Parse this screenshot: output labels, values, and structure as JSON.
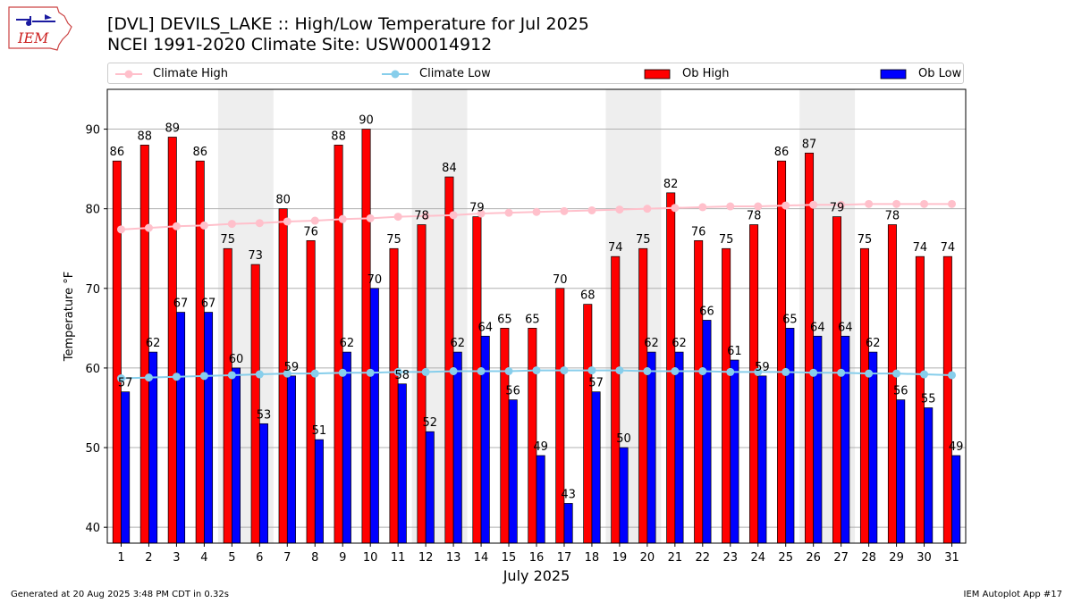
{
  "header": {
    "title_line1": "[DVL] DEVILS_LAKE :: High/Low Temperature for Jul 2025",
    "title_line2": "NCEI 1991-2020 Climate Site: USW00014912",
    "logo_text": "IEM"
  },
  "footer": {
    "generated": "Generated at 20 Aug 2025 3:48 PM CDT in 0.32s",
    "app": "IEM Autoplot App #17"
  },
  "colors": {
    "ob_high": "#ff0000",
    "ob_low": "#0000ff",
    "climate_high": "#ffc0cb",
    "climate_low": "#87ceeb",
    "weekend_shade": "#eeeeee",
    "grid": "#b0b0b0"
  },
  "chart_data": {
    "type": "bar",
    "xlabel": "July 2025",
    "ylabel": "Temperature °F",
    "ylim": [
      38,
      95
    ],
    "yticks": [
      40,
      50,
      60,
      70,
      80,
      90
    ],
    "grid": "horizontal",
    "legend_position": "top",
    "categories": [
      "1",
      "2",
      "3",
      "4",
      "5",
      "6",
      "7",
      "8",
      "9",
      "10",
      "11",
      "12",
      "13",
      "14",
      "15",
      "16",
      "17",
      "18",
      "19",
      "20",
      "21",
      "22",
      "23",
      "24",
      "25",
      "26",
      "27",
      "28",
      "29",
      "30",
      "31"
    ],
    "shaded_days": [
      [
        5,
        6
      ],
      [
        12,
        13
      ],
      [
        19,
        20
      ],
      [
        26,
        27
      ]
    ],
    "series": [
      {
        "name": "Ob High",
        "type": "bar",
        "values": [
          86,
          88,
          89,
          86,
          75,
          73,
          80,
          76,
          88,
          90,
          75,
          78,
          84,
          79,
          65,
          65,
          70,
          68,
          74,
          75,
          82,
          76,
          75,
          78,
          86,
          87,
          79,
          75,
          78,
          74,
          74
        ]
      },
      {
        "name": "Ob Low",
        "type": "bar",
        "values": [
          57,
          62,
          67,
          67,
          60,
          53,
          59,
          51,
          62,
          70,
          58,
          52,
          62,
          64,
          56,
          49,
          43,
          57,
          50,
          62,
          62,
          66,
          61,
          59,
          65,
          64,
          64,
          62,
          56,
          55,
          49
        ]
      },
      {
        "name": "Climate High",
        "type": "line",
        "values": [
          77.4,
          77.6,
          77.8,
          77.9,
          78.1,
          78.2,
          78.4,
          78.5,
          78.7,
          78.8,
          79.0,
          79.1,
          79.2,
          79.4,
          79.5,
          79.6,
          79.7,
          79.8,
          79.9,
          80.0,
          80.1,
          80.2,
          80.3,
          80.3,
          80.4,
          80.5,
          80.5,
          80.6,
          80.6,
          80.6,
          80.6
        ]
      },
      {
        "name": "Climate Low",
        "type": "line",
        "values": [
          58.7,
          58.8,
          58.9,
          59.0,
          59.1,
          59.2,
          59.3,
          59.3,
          59.4,
          59.4,
          59.5,
          59.5,
          59.6,
          59.6,
          59.6,
          59.7,
          59.7,
          59.7,
          59.7,
          59.6,
          59.6,
          59.6,
          59.5,
          59.5,
          59.5,
          59.4,
          59.4,
          59.3,
          59.3,
          59.2,
          59.1
        ]
      }
    ]
  }
}
